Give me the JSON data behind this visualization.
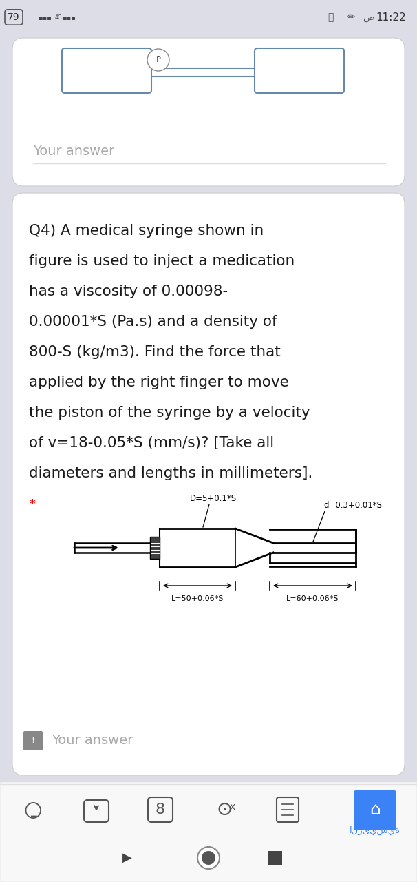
{
  "bg_color": "#dddde8",
  "card_color": "#ffffff",
  "status_bar_text": "11:22",
  "status_bar_left": "79",
  "question_text_lines": [
    "Q4) A medical syringe shown in",
    "figure is used to inject a medication",
    "has a viscosity of 0.00098-",
    "0.00001*S (Pa.s) and a density of",
    "800-S (kg/m3). Find the force that",
    "applied by the right finger to move",
    "the piston of the syringe by a velocity",
    "of v=18-0.05*S (mm/s)? [Take all",
    "diameters and lengths in millimeters]."
  ],
  "star": "*",
  "label_D": "D=5+0.1*S",
  "label_d": "d=0.3+0.01*S",
  "label_L1": "L=50+0.06*S",
  "label_L2": "L=60+0.06*S",
  "your_answer_top": "Your answer",
  "your_answer_bottom": "Your answer",
  "text_color": "#1a1a1a",
  "gray_text": "#aaaaaa",
  "line_color": "#000000",
  "card_edge_color": "#cccccc",
  "nav_bg": "#f5f5f5",
  "blue_btn": "#3b82f6"
}
